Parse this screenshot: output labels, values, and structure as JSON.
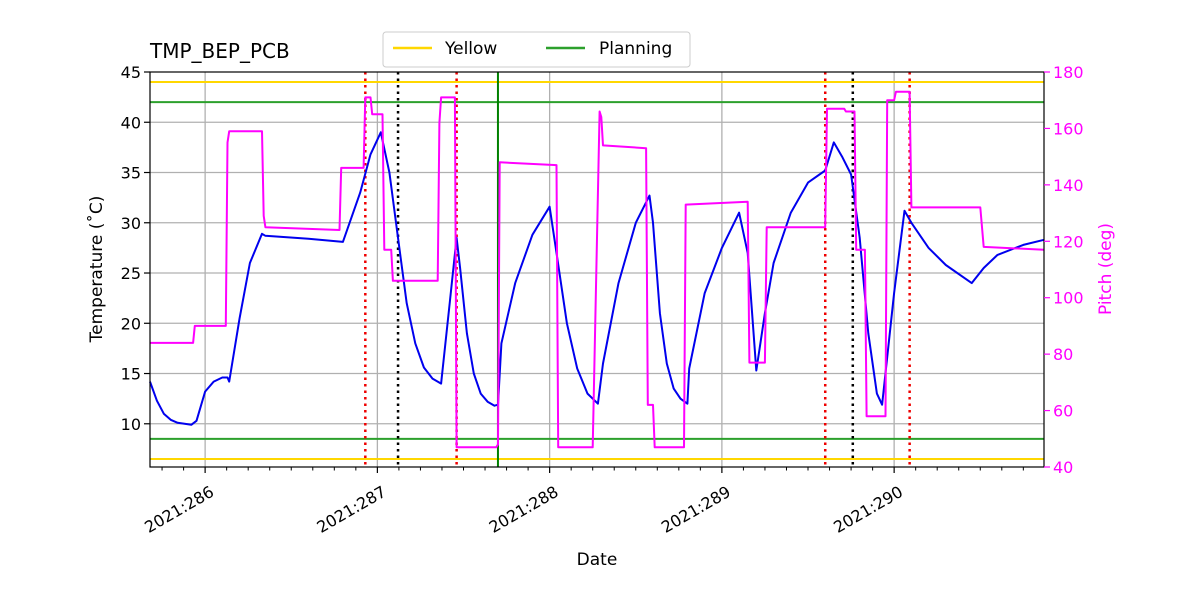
{
  "chart_data": {
    "type": "line",
    "title": "TMP_BEP_PCB",
    "xlabel": "Date",
    "ylabel": "Temperature ($^\\circ$C)",
    "ylabel_display": "Temperature (˚C)",
    "y2label": "Pitch (deg)",
    "x_range": [
      285.68,
      290.87
    ],
    "ylim": [
      5.7,
      45
    ],
    "y2lim": [
      40,
      180
    ],
    "x_ticks": [
      286,
      287,
      288,
      289,
      290
    ],
    "x_tick_labels": [
      "2021:286",
      "2021:287",
      "2021:288",
      "2021:289",
      "2021:290"
    ],
    "y_ticks": [
      10,
      15,
      20,
      25,
      30,
      35,
      40,
      45
    ],
    "y2_ticks": [
      40,
      60,
      80,
      100,
      120,
      140,
      160,
      180
    ],
    "grid": true,
    "legend": {
      "placement": "top-center",
      "entries": [
        {
          "name": "Yellow",
          "color": "#ffd700"
        },
        {
          "name": "Planning",
          "color": "#2ca02c"
        }
      ]
    },
    "hlines": [
      {
        "name": "Yellow",
        "values": [
          44,
          6.5
        ],
        "color": "#ffd700"
      },
      {
        "name": "Planning",
        "values": [
          42,
          8.5
        ],
        "color": "#2ca02c"
      }
    ],
    "vlines": {
      "red_dotted": [
        286.93,
        287.46,
        289.6,
        290.09
      ],
      "black_dotted": [
        287.12,
        289.76
      ],
      "green_solid": [
        287.7
      ]
    },
    "series": [
      {
        "axis": "left",
        "color": "#0000ee",
        "x": [
          285.68,
          285.72,
          285.76,
          285.8,
          285.84,
          285.88,
          285.92,
          285.95,
          286.0,
          286.05,
          286.1,
          286.13,
          286.14,
          286.2,
          286.26,
          286.33,
          286.35,
          286.6,
          286.8,
          286.9,
          286.96,
          287.02,
          287.07,
          287.12,
          287.17,
          287.22,
          287.27,
          287.32,
          287.37,
          287.42,
          287.46,
          287.48,
          287.52,
          287.56,
          287.6,
          287.64,
          287.68,
          287.7,
          287.72,
          287.8,
          287.9,
          288.0,
          288.04,
          288.1,
          288.16,
          288.22,
          288.28,
          288.31,
          288.4,
          288.5,
          288.58,
          288.6,
          288.64,
          288.68,
          288.72,
          288.76,
          288.8,
          288.81,
          288.9,
          289.0,
          289.1,
          289.15,
          289.2,
          289.25,
          289.3,
          289.4,
          289.5,
          289.6,
          289.65,
          289.7,
          289.75,
          289.8,
          289.85,
          289.9,
          289.93,
          290.0,
          290.06,
          290.1,
          290.2,
          290.3,
          290.45,
          290.52,
          290.6,
          290.75,
          290.87
        ],
        "y": [
          14.2,
          12.3,
          11.0,
          10.4,
          10.1,
          10.0,
          9.9,
          10.3,
          13.2,
          14.2,
          14.6,
          14.6,
          14.2,
          20.5,
          26.0,
          28.9,
          28.7,
          28.4,
          28.1,
          33.0,
          36.8,
          39.0,
          35.0,
          28.5,
          22.0,
          18.0,
          15.6,
          14.5,
          14.0,
          22.0,
          28.5,
          25.5,
          19.0,
          15.0,
          13.0,
          12.2,
          11.8,
          11.9,
          18.0,
          24.0,
          28.8,
          31.6,
          27.0,
          20.0,
          15.5,
          13.0,
          12.0,
          16.0,
          24.0,
          30.0,
          32.7,
          30.0,
          21.0,
          16.0,
          13.5,
          12.5,
          12.0,
          15.5,
          23.0,
          27.5,
          31.0,
          27.0,
          15.3,
          21.0,
          26.0,
          31.0,
          34.0,
          35.2,
          38.0,
          36.5,
          34.8,
          28.5,
          19.0,
          13.0,
          11.9,
          23.0,
          31.2,
          30.0,
          27.5,
          25.8,
          24.0,
          25.5,
          26.8,
          27.8,
          28.3
        ]
      },
      {
        "axis": "right",
        "color": "#ff00ff",
        "x": [
          285.68,
          285.93,
          285.94,
          286.12,
          286.13,
          286.14,
          286.33,
          286.34,
          286.35,
          286.78,
          286.79,
          286.92,
          286.93,
          286.96,
          286.97,
          287.03,
          287.04,
          287.08,
          287.09,
          287.11,
          287.12,
          287.35,
          287.36,
          287.37,
          287.45,
          287.46,
          287.47,
          287.69,
          287.7,
          287.71,
          288.04,
          288.05,
          288.25,
          288.29,
          288.3,
          288.31,
          288.56,
          288.57,
          288.6,
          288.61,
          288.78,
          288.79,
          289.15,
          289.16,
          289.25,
          289.26,
          289.6,
          289.61,
          289.71,
          289.72,
          289.77,
          289.78,
          289.83,
          289.84,
          289.95,
          289.96,
          290.0,
          290.01,
          290.09,
          290.1,
          290.5,
          290.52,
          290.87
        ],
        "y": [
          84,
          84,
          90,
          90,
          155,
          159,
          159,
          129,
          125,
          124,
          146,
          146,
          171,
          171,
          165,
          165,
          117,
          117,
          106,
          106,
          106,
          106,
          162,
          171,
          171,
          47,
          47,
          47,
          48,
          148,
          147,
          47,
          47,
          166,
          164,
          154,
          153,
          62,
          62,
          47,
          47,
          133,
          134,
          77,
          77,
          125,
          125,
          167,
          167,
          166,
          166,
          117,
          117,
          58,
          58,
          170,
          170,
          173,
          173,
          132,
          132,
          118,
          117
        ]
      }
    ]
  }
}
